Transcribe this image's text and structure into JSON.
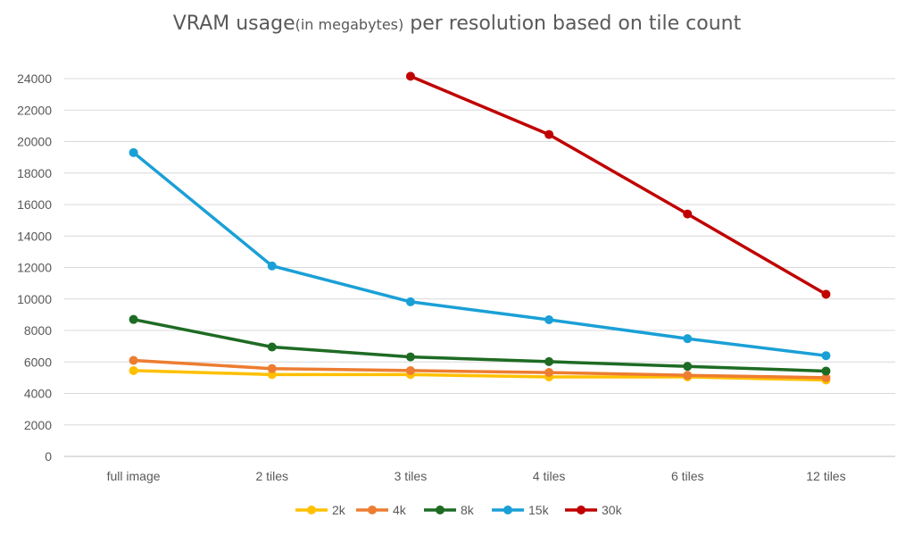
{
  "chart_data": {
    "type": "line",
    "title_main": "VRAM usage",
    "title_sub": "(in megabytes)",
    "title_rest": " per resolution based on tile count",
    "xlabel": "",
    "ylabel": "",
    "categories": [
      "full image",
      "2 tiles",
      "3 tiles",
      "4 tiles",
      "6 tiles",
      "12 tiles"
    ],
    "ylim": [
      0,
      24000
    ],
    "yticks": [
      0,
      2000,
      4000,
      6000,
      8000,
      10000,
      12000,
      14000,
      16000,
      18000,
      20000,
      22000,
      24000
    ],
    "grid": true,
    "legend_position": "bottom",
    "series": [
      {
        "name": "2k",
        "color": "#FFC000",
        "values": [
          5450,
          5200,
          5200,
          5050,
          5050,
          4850
        ]
      },
      {
        "name": "4k",
        "color": "#ED7D31",
        "values": [
          6100,
          5580,
          5450,
          5330,
          5150,
          5000
        ]
      },
      {
        "name": "8k",
        "color": "#1E6B23",
        "values": [
          8700,
          6950,
          6320,
          6020,
          5720,
          5420
        ]
      },
      {
        "name": "15k",
        "color": "#1AA0D6",
        "values": [
          19300,
          12100,
          9820,
          8680,
          7480,
          6400
        ]
      },
      {
        "name": "30k",
        "color": "#C00000",
        "values": [
          null,
          null,
          24150,
          20450,
          15400,
          10300
        ]
      }
    ]
  }
}
